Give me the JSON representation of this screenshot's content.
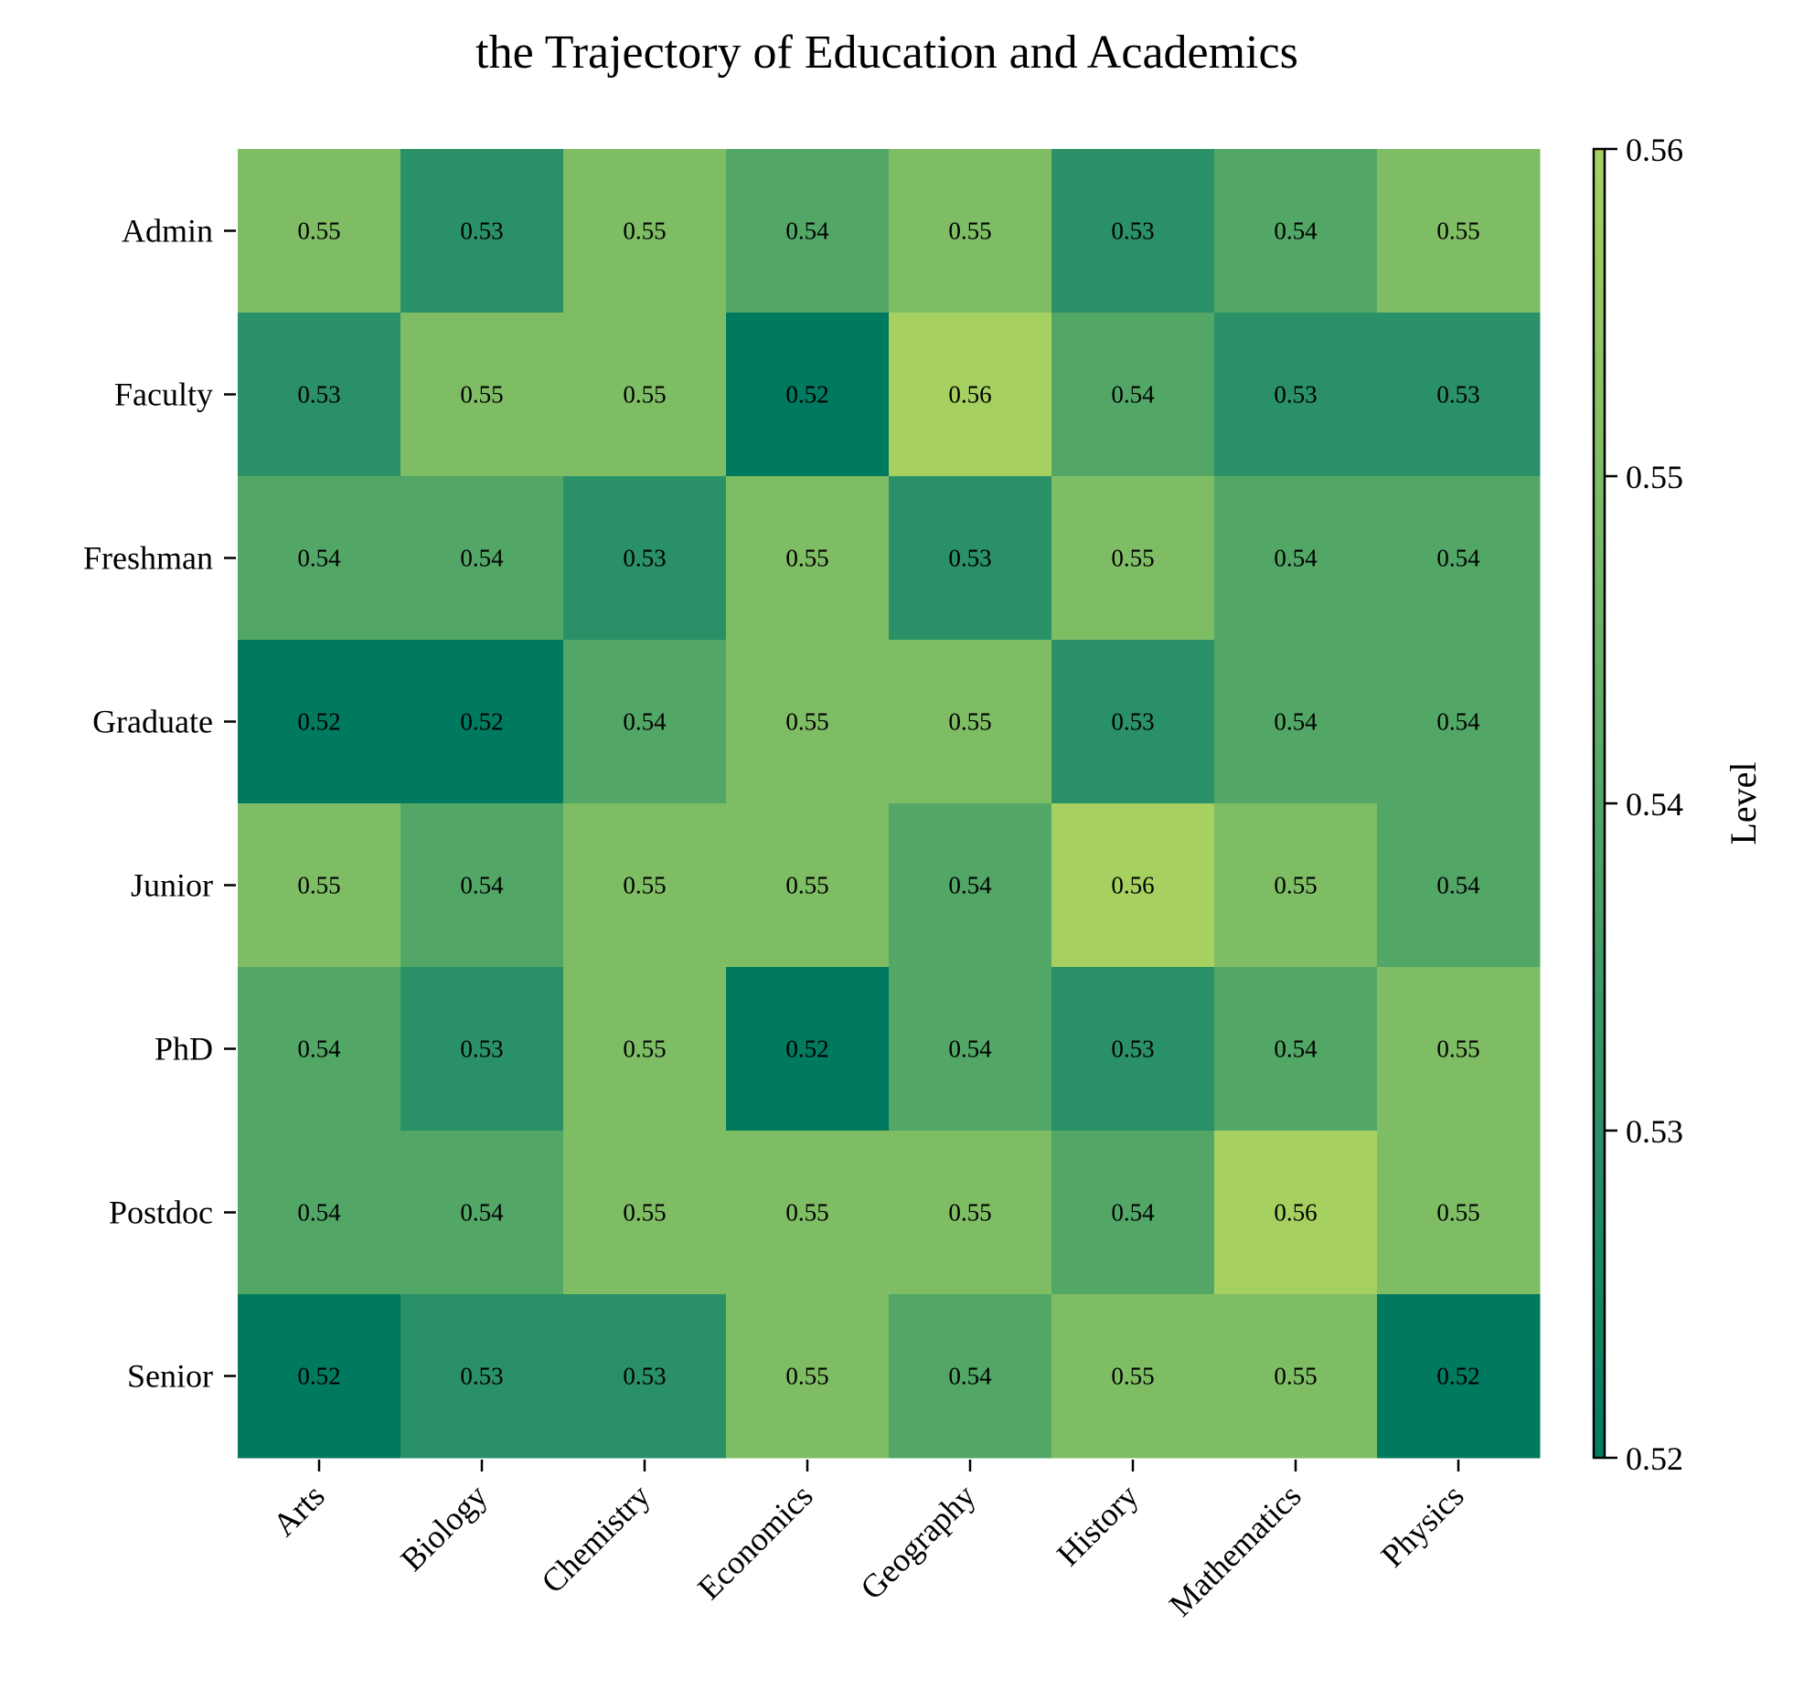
{
  "chart_data": {
    "type": "heatmap",
    "title": "the Trajectory of Education and Academics",
    "xlabel": "",
    "ylabel": "",
    "x_categories": [
      "Arts",
      "Biology",
      "Chemistry",
      "Economics",
      "Geography",
      "History",
      "Mathematics",
      "Physics"
    ],
    "y_categories": [
      "Admin",
      "Faculty",
      "Freshman",
      "Graduate",
      "Junior",
      "PhD",
      "Postdoc",
      "Senior"
    ],
    "values": [
      [
        0.55,
        0.53,
        0.55,
        0.54,
        0.55,
        0.53,
        0.54,
        0.55
      ],
      [
        0.53,
        0.55,
        0.55,
        0.52,
        0.56,
        0.54,
        0.53,
        0.53
      ],
      [
        0.54,
        0.54,
        0.53,
        0.55,
        0.53,
        0.55,
        0.54,
        0.54
      ],
      [
        0.52,
        0.52,
        0.54,
        0.55,
        0.55,
        0.53,
        0.54,
        0.54
      ],
      [
        0.55,
        0.54,
        0.55,
        0.55,
        0.54,
        0.56,
        0.55,
        0.54
      ],
      [
        0.54,
        0.53,
        0.55,
        0.52,
        0.54,
        0.53,
        0.54,
        0.55
      ],
      [
        0.54,
        0.54,
        0.55,
        0.55,
        0.55,
        0.54,
        0.56,
        0.55
      ],
      [
        0.52,
        0.53,
        0.53,
        0.55,
        0.54,
        0.55,
        0.55,
        0.52
      ]
    ],
    "value_format": "0.00",
    "colorbar": {
      "label": "Level",
      "range": [
        0.52,
        0.56
      ],
      "ticks": [
        "0.52",
        "0.53",
        "0.54",
        "0.55",
        "0.56"
      ],
      "stops": [
        {
          "value": 0.52,
          "color": "#007a5e"
        },
        {
          "value": 0.53,
          "color": "#2a9067"
        },
        {
          "value": 0.54,
          "color": "#52a767"
        },
        {
          "value": 0.55,
          "color": "#7fbd65"
        },
        {
          "value": 0.56,
          "color": "#a6d160"
        }
      ]
    },
    "grid": false,
    "legend": "colorbar-right"
  }
}
